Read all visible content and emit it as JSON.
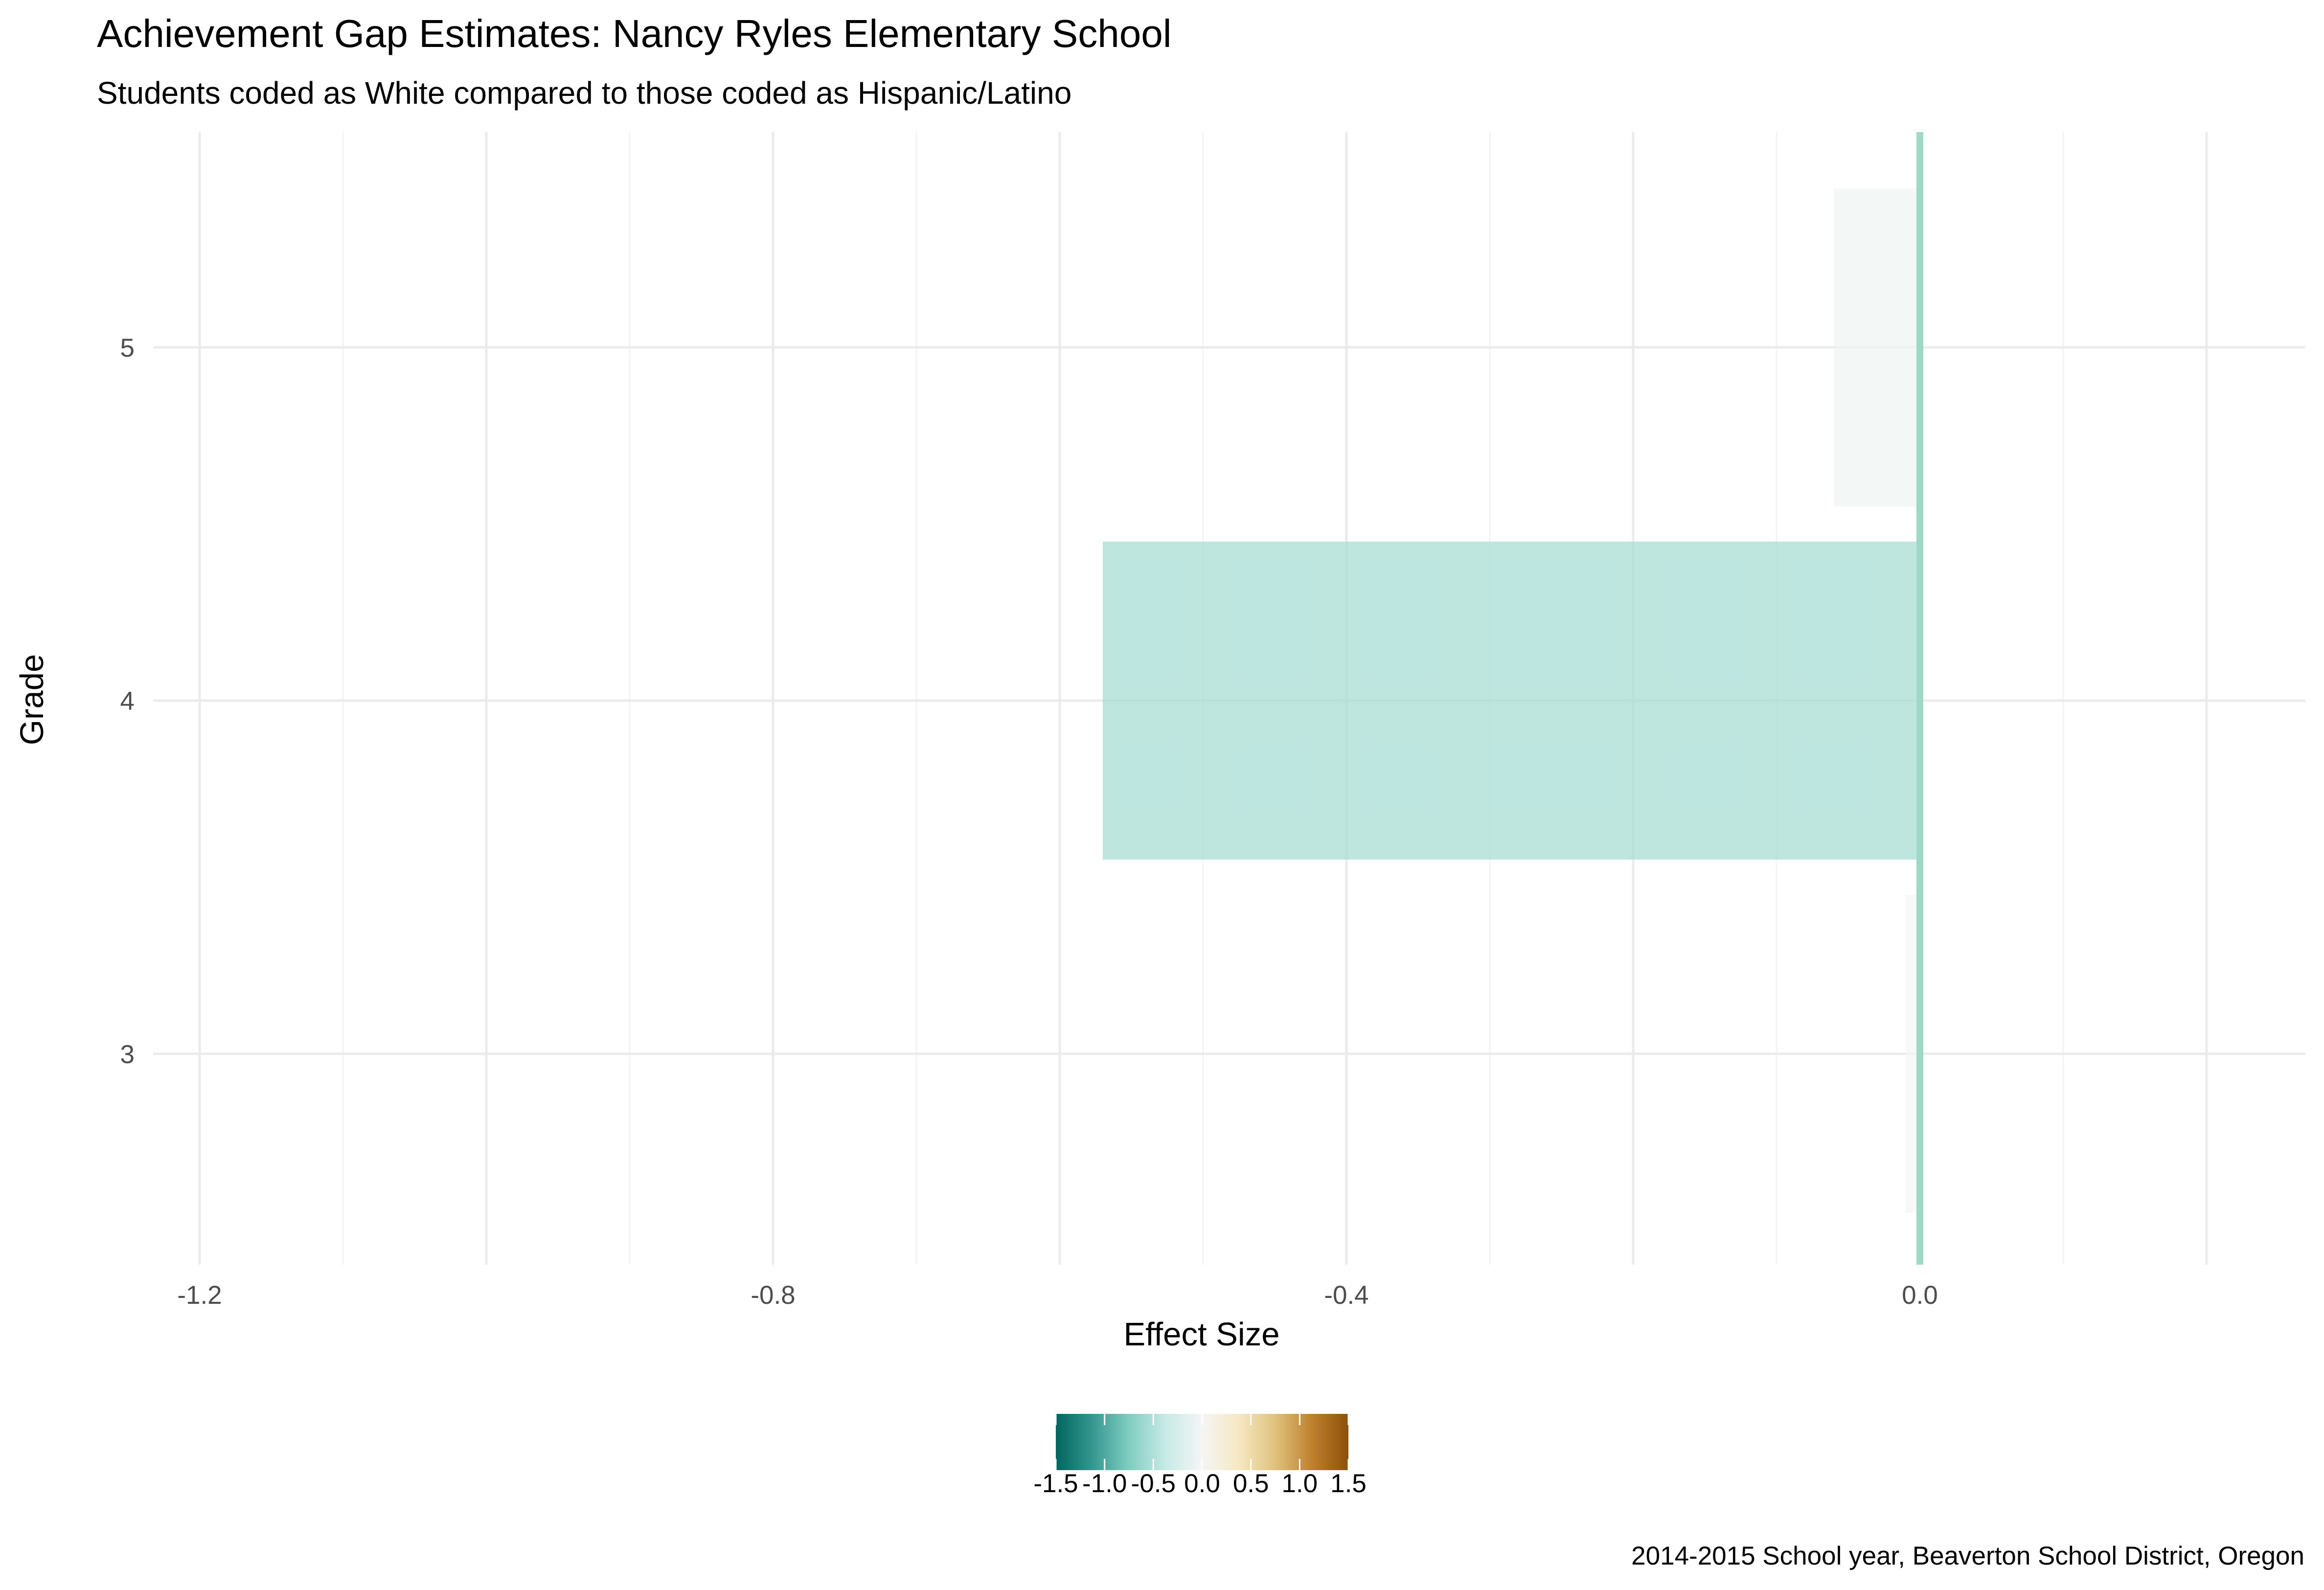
{
  "chart_data": {
    "type": "bar",
    "orientation": "horizontal",
    "title": "Achievement Gap Estimates: Nancy Ryles Elementary School",
    "subtitle": "Students coded as White compared to those coded as Hispanic/Latino",
    "xlabel": "Effect Size",
    "ylabel": "Grade",
    "categories": [
      "3",
      "4",
      "5"
    ],
    "values": [
      -0.01,
      -0.57,
      -0.06
    ],
    "xlim": [
      -1.2,
      0.2
    ],
    "x_ticks": [
      -1.2,
      -0.8,
      -0.4,
      0.0
    ],
    "x_tick_labels": [
      "-1.2",
      "-0.8",
      "-0.4",
      "0.0"
    ],
    "reference_line": 0,
    "grid": true,
    "legend": {
      "position": "bottom",
      "type": "colorbar",
      "range": [
        -1.5,
        1.5
      ],
      "ticks": [
        -1.5,
        -1.0,
        -0.5,
        0.0,
        0.5,
        1.0,
        1.5
      ],
      "tick_labels": [
        "-1.5",
        "-1.0",
        "-0.5",
        "0.0",
        "0.5",
        "1.0",
        "1.5"
      ],
      "palette": [
        "#01665e",
        "#35978f",
        "#80cdc1",
        "#c7eae5",
        "#f5f5f5",
        "#f6e8c3",
        "#dfc27d",
        "#bf812d",
        "#8c510a"
      ]
    },
    "caption": "2014-2015 School year, Beaverton School District, Oregon"
  },
  "colors": {
    "background": "#ffffff",
    "grid_major": "#ebebeb",
    "grid_minor": "#f3f3f3",
    "zero_line": "#9ed9c6",
    "tick_text": "#4d4d4d",
    "bar_opacity": 0.7
  }
}
